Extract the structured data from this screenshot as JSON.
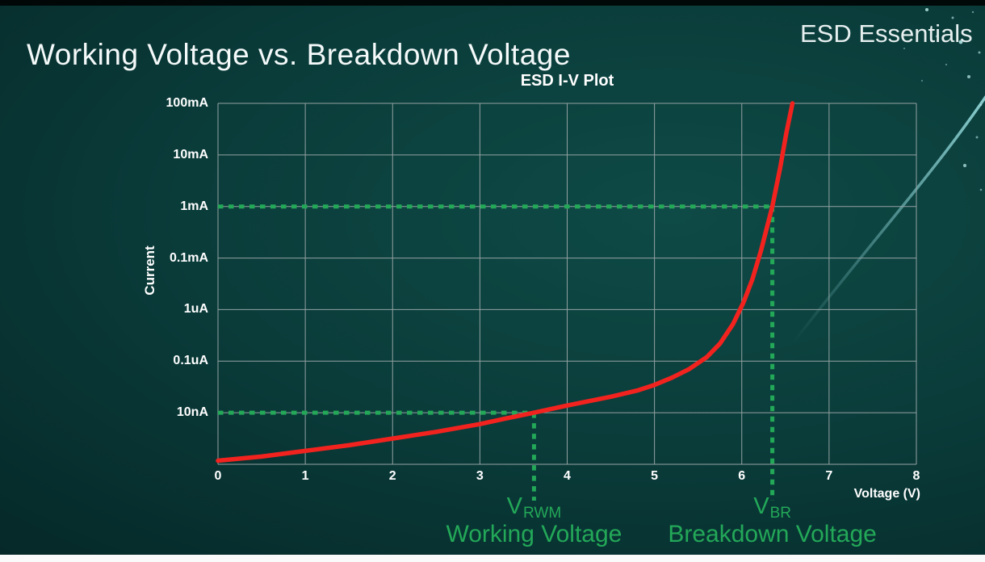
{
  "page": {
    "title": "Working Voltage vs. Breakdown Voltage",
    "brand": "ESD Essentials"
  },
  "chart_data": {
    "type": "line",
    "title": "ESD I-V Plot",
    "xlabel": "Voltage (V)",
    "ylabel": "Current",
    "xlim": [
      0,
      8
    ],
    "x_ticks": [
      0,
      1,
      2,
      3,
      4,
      5,
      6,
      7,
      8
    ],
    "y_scale": "log-decades, one gridline row per tick label, top row = 100mA",
    "y_tick_labels": [
      "100mA",
      "10mA",
      "1mA",
      "0.1mA",
      "1uA",
      "0.1uA",
      "10nA"
    ],
    "grid": true,
    "grid_color": "#94a2a2",
    "series": [
      {
        "name": "ESD I-V curve",
        "color": "#f2231f",
        "points_note": "pairs of [voltage_V, decade_row] where row 0 = 100mA gridline and row 6 = 10nA gridline, row 7 = bottom axis",
        "points_v_row": [
          [
            0,
            6.93
          ],
          [
            0.5,
            6.85
          ],
          [
            1,
            6.74
          ],
          [
            1.5,
            6.63
          ],
          [
            2,
            6.5
          ],
          [
            2.5,
            6.37
          ],
          [
            3,
            6.22
          ],
          [
            3.3,
            6.11
          ],
          [
            3.62,
            6.0
          ],
          [
            4,
            5.86
          ],
          [
            4.5,
            5.69
          ],
          [
            4.8,
            5.57
          ],
          [
            5,
            5.46
          ],
          [
            5.2,
            5.32
          ],
          [
            5.4,
            5.15
          ],
          [
            5.6,
            4.92
          ],
          [
            5.75,
            4.66
          ],
          [
            5.9,
            4.28
          ],
          [
            6.02,
            3.86
          ],
          [
            6.12,
            3.42
          ],
          [
            6.22,
            2.86
          ],
          [
            6.35,
            2.0
          ],
          [
            6.44,
            1.25
          ],
          [
            6.51,
            0.58
          ],
          [
            6.58,
            0
          ]
        ]
      }
    ],
    "annotations": {
      "color": "#23a858",
      "markers": [
        {
          "id": "vrwm",
          "symbol": "V",
          "subscript": "RWM",
          "caption": "Working Voltage",
          "voltage": 3.62,
          "current": "10nA",
          "row": 6
        },
        {
          "id": "vbr",
          "symbol": "V",
          "subscript": "BR",
          "caption": "Breakdown Voltage",
          "voltage": 6.35,
          "current": "1mA",
          "row": 2
        }
      ]
    }
  }
}
